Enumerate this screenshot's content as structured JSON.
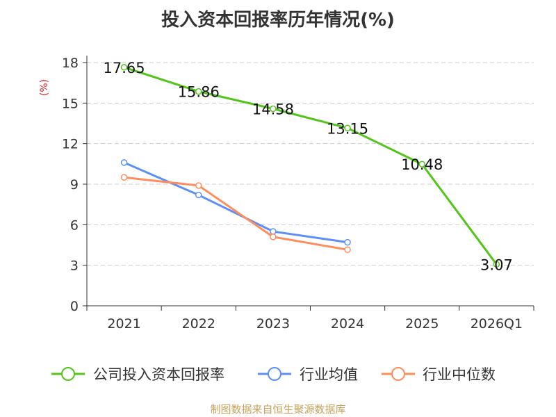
{
  "chart_data": {
    "type": "line",
    "title": "投入资本回报率历年情况(%)",
    "ylabel": "(%)",
    "xlabel": "",
    "categories": [
      "2021",
      "2022",
      "2023",
      "2024",
      "2025",
      "2026Q1"
    ],
    "ylim": [
      0,
      18
    ],
    "yticks": [
      0,
      3,
      6,
      9,
      12,
      15,
      18
    ],
    "grid": true,
    "legend_position": "bottom",
    "series": [
      {
        "name": "公司投入资本回报率",
        "color": "#52c41a",
        "values": [
          17.65,
          15.86,
          14.58,
          13.15,
          10.48,
          3.07
        ],
        "labels": [
          "17.65",
          "15.86",
          "14.58",
          "13.15",
          "10.48",
          "3.07"
        ]
      },
      {
        "name": "行业均值",
        "color": "#5b8ff9",
        "values": [
          10.6,
          8.2,
          5.5,
          4.7,
          null,
          null
        ]
      },
      {
        "name": "行业中位数",
        "color": "#ff8c5a",
        "values": [
          9.5,
          8.9,
          5.1,
          4.15,
          null,
          null
        ]
      }
    ]
  },
  "footer": {
    "source": "制图数据来自恒生聚源数据库",
    "color": "#c8a25a"
  },
  "colors": {
    "axis": "#333333",
    "grid": "#cccccc",
    "ylabel": "#e02020"
  }
}
